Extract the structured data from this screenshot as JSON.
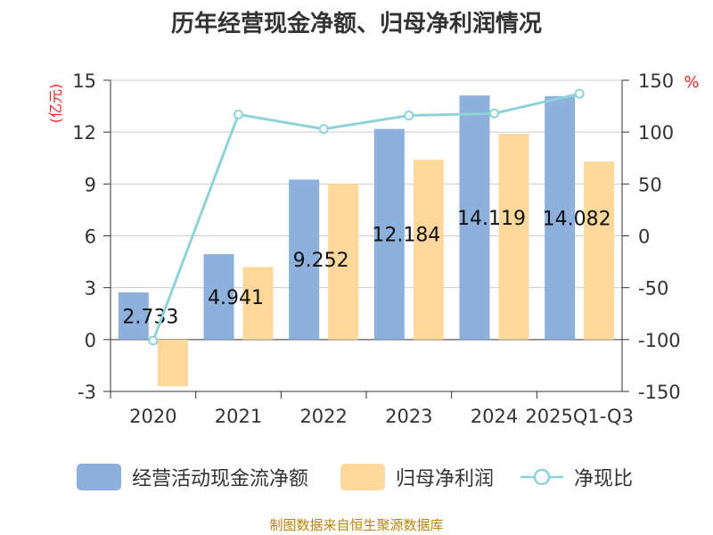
{
  "title": "历年经营现金净额、归母净利润情况",
  "source": "制图数据来自恒生聚源数据库",
  "colors": {
    "cash": "#8eb0dc",
    "profit": "#fdd89a",
    "ratio": "#8dd3d9",
    "unit": "#e6261f"
  },
  "chart_data": {
    "type": "bar",
    "categories": [
      "2020",
      "2021",
      "2022",
      "2023",
      "2024",
      "2025Q1-Q3"
    ],
    "series": [
      {
        "name": "经营活动现金流净额",
        "kind": "bar",
        "axis": "left",
        "values": [
          2.733,
          4.941,
          9.252,
          12.184,
          14.119,
          14.082
        ],
        "labels": [
          "2.733",
          "4.941",
          "9.252",
          "12.184",
          "14.119",
          "14.082"
        ]
      },
      {
        "name": "归母净利润",
        "kind": "bar",
        "axis": "left",
        "values": [
          -2.7,
          4.2,
          9.0,
          10.4,
          11.9,
          10.3
        ]
      },
      {
        "name": "净现比",
        "kind": "line",
        "axis": "right",
        "values": [
          -101,
          117,
          103,
          116,
          118,
          137
        ]
      }
    ],
    "ylabel_left": "(亿元)",
    "ylabel_right": "%",
    "ylim_left": [
      -3,
      15
    ],
    "yticks_left": [
      "-3",
      "0",
      "3",
      "6",
      "9",
      "12",
      "15"
    ],
    "ylim_right": [
      -150,
      150
    ],
    "yticks_right": [
      "-150",
      "-100",
      "-50",
      "0",
      "50",
      "100",
      "150"
    ],
    "grid": true,
    "legend_position": "bottom"
  }
}
